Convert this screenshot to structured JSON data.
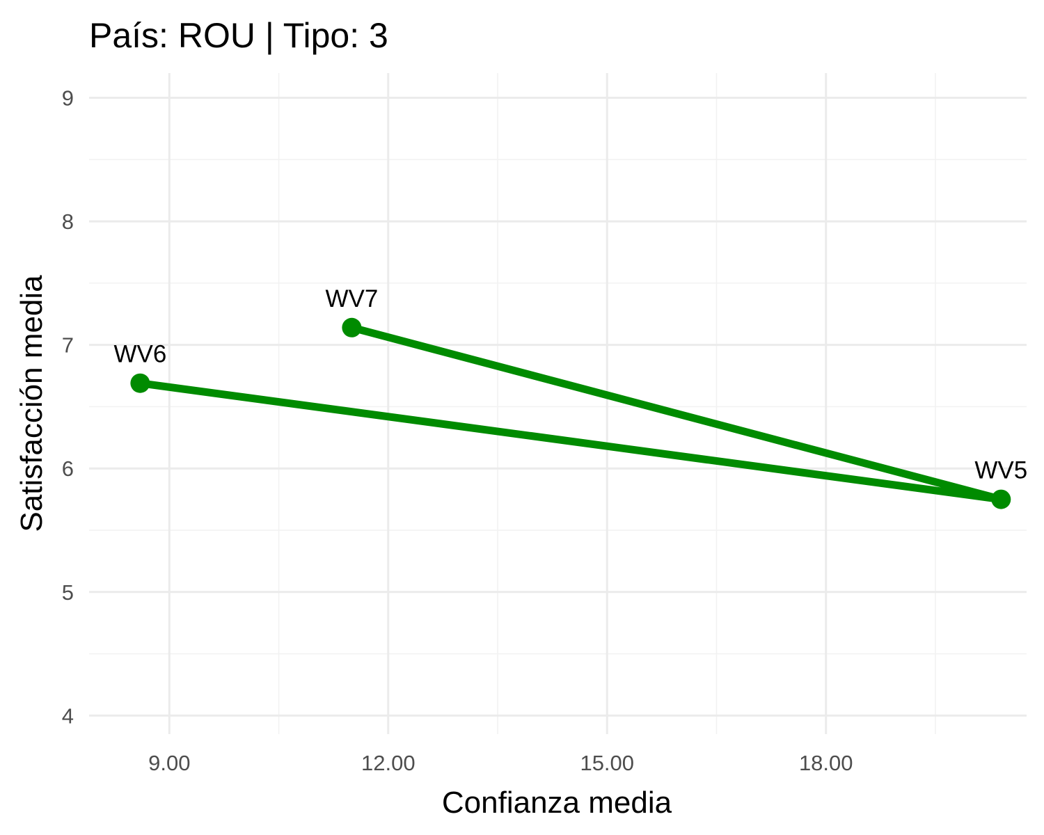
{
  "chart_data": {
    "type": "line",
    "title": "País: ROU | Tipo: 3",
    "xlabel": "Confianza media",
    "ylabel": "Satisfacción media",
    "xlim": [
      7.9,
      20.75
    ],
    "ylim": [
      3.85,
      9.2
    ],
    "x_ticks": [
      9,
      12,
      15,
      18
    ],
    "x_tick_labels": [
      "9.00",
      "12.00",
      "15.00",
      "18.00"
    ],
    "y_ticks": [
      4,
      5,
      6,
      7,
      8,
      9
    ],
    "y_tick_labels": [
      "4",
      "5",
      "6",
      "7",
      "8",
      "9"
    ],
    "grid": true,
    "line_color": "#008b00",
    "path_order": [
      "WV6",
      "WV5",
      "WV7"
    ],
    "points": [
      {
        "label": "WV5",
        "x": 20.4,
        "y": 5.75
      },
      {
        "label": "WV6",
        "x": 8.6,
        "y": 6.69
      },
      {
        "label": "WV7",
        "x": 11.5,
        "y": 7.14
      }
    ]
  }
}
